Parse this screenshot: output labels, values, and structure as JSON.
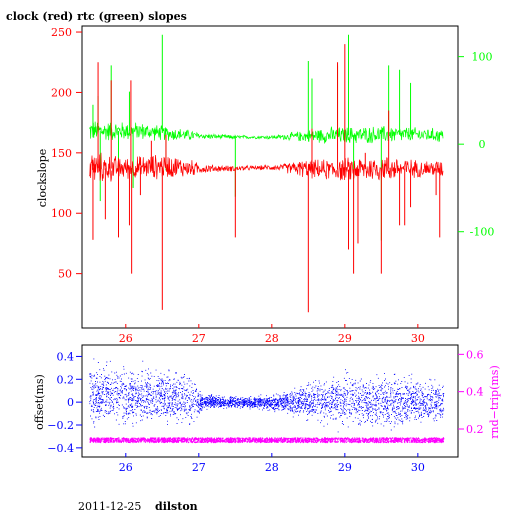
{
  "figure_title": "clock (red) rtc (green) slopes",
  "footer_date": "2011-12-25",
  "footer_host": "dilston",
  "colors": {
    "clock": "#ff0000",
    "rtc": "#00ff00",
    "offset": "#0000ff",
    "roundtrip": "#ff00ff",
    "frame": "#000000",
    "background": "#ffffff"
  },
  "chart_data": [
    {
      "type": "line",
      "title": "clock (red) rtc (green) slopes",
      "xlabel": "",
      "xlim": [
        25.4,
        30.55
      ],
      "x_ticks": [
        26,
        27,
        28,
        29,
        30
      ],
      "x_tick_labels": [
        "26",
        "27",
        "28",
        "29",
        "30"
      ],
      "grid": false,
      "legend": "none",
      "y_left": {
        "label": "clockslope",
        "lim": [
          5,
          255
        ],
        "ticks": [
          50,
          100,
          150,
          200,
          250
        ],
        "tick_labels": [
          "50",
          "100",
          "150",
          "200",
          "250"
        ]
      },
      "y_right": {
        "label": "",
        "lim": [
          -210,
          135
        ],
        "ticks": [
          -100,
          0,
          100
        ],
        "tick_labels": [
          "-100",
          "0",
          "100"
        ]
      },
      "series": [
        {
          "name": "clock",
          "axis": "left",
          "color": "#ff0000",
          "x_range": [
            25.5,
            30.35
          ],
          "baseline": [
            [
              25.5,
              138
            ],
            [
              25.8,
              137
            ],
            [
              26.2,
              138
            ],
            [
              26.6,
              139
            ],
            [
              26.9,
              137
            ],
            [
              27.05,
              137
            ],
            [
              27.5,
              137
            ],
            [
              28.0,
              138
            ],
            [
              28.4,
              137
            ],
            [
              28.7,
              136
            ],
            [
              29.0,
              136
            ],
            [
              29.5,
              137
            ],
            [
              30.0,
              137
            ],
            [
              30.35,
              137
            ]
          ],
          "noise_amplitude": [
            [
              25.5,
              16
            ],
            [
              26.0,
              10
            ],
            [
              26.5,
              12
            ],
            [
              26.9,
              8
            ],
            [
              27.0,
              5
            ],
            [
              27.3,
              3
            ],
            [
              27.8,
              2
            ],
            [
              28.1,
              3
            ],
            [
              28.4,
              8
            ],
            [
              28.8,
              10
            ],
            [
              29.2,
              12
            ],
            [
              29.6,
              12
            ],
            [
              30.0,
              8
            ],
            [
              30.35,
              8
            ]
          ],
          "spikes": [
            [
              25.55,
              78
            ],
            [
              25.62,
              225
            ],
            [
              25.72,
              95
            ],
            [
              25.8,
              210
            ],
            [
              25.9,
              80
            ],
            [
              26.05,
              90
            ],
            [
              26.07,
              210
            ],
            [
              26.08,
              50
            ],
            [
              26.2,
              115
            ],
            [
              26.35,
              160
            ],
            [
              26.5,
              20
            ],
            [
              26.55,
              165
            ],
            [
              27.5,
              80
            ],
            [
              28.5,
              18
            ],
            [
              28.55,
              170
            ],
            [
              28.9,
              225
            ],
            [
              29.0,
              240
            ],
            [
              29.05,
              70
            ],
            [
              29.12,
              50
            ],
            [
              29.18,
              75
            ],
            [
              29.28,
              150
            ],
            [
              29.5,
              50
            ],
            [
              29.6,
              185
            ],
            [
              29.75,
              90
            ],
            [
              29.82,
              90
            ],
            [
              29.9,
              105
            ],
            [
              30.25,
              115
            ],
            [
              30.3,
              80
            ]
          ]
        },
        {
          "name": "rtc",
          "axis": "right",
          "color": "#00ff00",
          "x_range": [
            25.5,
            30.35
          ],
          "baseline": [
            [
              25.5,
              15
            ],
            [
              25.8,
              15
            ],
            [
              26.2,
              15
            ],
            [
              26.6,
              12
            ],
            [
              26.9,
              10
            ],
            [
              27.1,
              9
            ],
            [
              27.5,
              8
            ],
            [
              28.0,
              8
            ],
            [
              28.4,
              9
            ],
            [
              28.7,
              10
            ],
            [
              29.0,
              10
            ],
            [
              29.5,
              11
            ],
            [
              30.0,
              11
            ],
            [
              30.35,
              10
            ]
          ],
          "noise_amplitude": [
            [
              25.5,
              14
            ],
            [
              26.0,
              12
            ],
            [
              26.5,
              10
            ],
            [
              26.9,
              7
            ],
            [
              27.0,
              4
            ],
            [
              27.3,
              3
            ],
            [
              27.8,
              2
            ],
            [
              28.1,
              3
            ],
            [
              28.4,
              7
            ],
            [
              28.8,
              11
            ],
            [
              29.2,
              11
            ],
            [
              29.6,
              11
            ],
            [
              30.0,
              9
            ],
            [
              30.35,
              9
            ]
          ],
          "spikes": [
            [
              25.55,
              45
            ],
            [
              25.62,
              55
            ],
            [
              25.65,
              -65
            ],
            [
              25.8,
              90
            ],
            [
              25.9,
              -60
            ],
            [
              26.05,
              60
            ],
            [
              26.1,
              -50
            ],
            [
              26.5,
              125
            ],
            [
              26.55,
              -30
            ],
            [
              27.5,
              -60
            ],
            [
              28.5,
              95
            ],
            [
              28.55,
              75
            ],
            [
              28.9,
              90
            ],
            [
              29.05,
              125
            ],
            [
              29.12,
              -40
            ],
            [
              29.5,
              -110
            ],
            [
              29.6,
              90
            ],
            [
              29.75,
              85
            ],
            [
              29.9,
              70
            ]
          ]
        }
      ]
    },
    {
      "type": "scatter",
      "title": "",
      "xlabel": "",
      "xlim": [
        25.4,
        30.55
      ],
      "x_ticks": [
        26,
        27,
        28,
        29,
        30
      ],
      "x_tick_labels": [
        "26",
        "27",
        "28",
        "29",
        "30"
      ],
      "grid": false,
      "legend": "none",
      "y_left": {
        "label": "offset(ms)",
        "lim": [
          -0.48,
          0.5
        ],
        "ticks": [
          0.4,
          0.2,
          0,
          -0.2,
          -0.4
        ],
        "tick_labels": [
          "0.4",
          "0.2",
          "0",
          "−0.2",
          "−0.4"
        ]
      },
      "y_right": {
        "label": "rnd−trip(ms)",
        "lim": [
          0.05,
          0.65
        ],
        "ticks": [
          0.2,
          0.4,
          0.6
        ],
        "tick_labels": [
          "0.2",
          "0.4",
          "0.6"
        ]
      },
      "series": [
        {
          "name": "offset",
          "axis": "left",
          "color": "#0000ff",
          "x_range": [
            25.5,
            30.35
          ],
          "points_count": 3600,
          "baseline": [
            [
              25.5,
              0.08
            ],
            [
              26.0,
              0.04
            ],
            [
              26.5,
              0.06
            ],
            [
              27.0,
              0.0
            ],
            [
              27.5,
              0.0
            ],
            [
              28.0,
              -0.01
            ],
            [
              28.5,
              0.01
            ],
            [
              29.0,
              0.02
            ],
            [
              29.5,
              0.01
            ],
            [
              30.0,
              0.01
            ],
            [
              30.35,
              0.0
            ]
          ],
          "spread": [
            [
              25.5,
              0.22
            ],
            [
              26.0,
              0.2
            ],
            [
              26.5,
              0.2
            ],
            [
              26.9,
              0.18
            ],
            [
              27.05,
              0.05
            ],
            [
              27.6,
              0.04
            ],
            [
              28.0,
              0.05
            ],
            [
              28.3,
              0.09
            ],
            [
              28.8,
              0.18
            ],
            [
              29.2,
              0.2
            ],
            [
              29.7,
              0.18
            ],
            [
              30.35,
              0.14
            ]
          ]
        },
        {
          "name": "roundtrip",
          "axis": "right",
          "color": "#ff00ff",
          "x_range": [
            25.5,
            30.35
          ],
          "points_count": 2200,
          "level": 0.14,
          "spread": 0.012
        }
      ]
    }
  ]
}
